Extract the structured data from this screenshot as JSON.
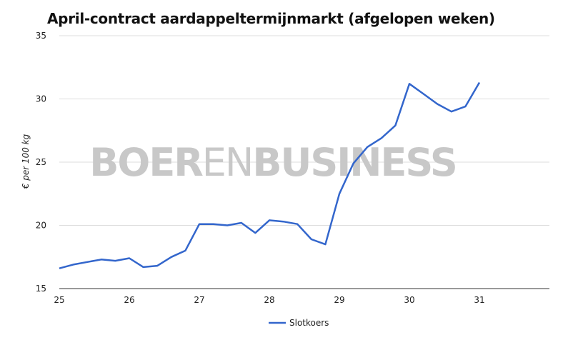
{
  "chart_data": {
    "type": "line",
    "title": "April-contract aardappeltermijnmarkt (afgelopen weken)",
    "ylabel": "€ per 100 kg",
    "xlabel": "",
    "xlim": [
      25,
      32
    ],
    "ylim": [
      15,
      35
    ],
    "x_ticks": [
      "25",
      "26",
      "27",
      "28",
      "29",
      "30",
      "31"
    ],
    "y_ticks": [
      "15",
      "20",
      "25",
      "30",
      "35"
    ],
    "grid": true,
    "legend_position": "bottom",
    "series": [
      {
        "name": "Slotkoers",
        "color": "#3366cc",
        "x": [
          25.0,
          25.2,
          25.4,
          25.6,
          25.8,
          26.0,
          26.2,
          26.4,
          26.6,
          26.8,
          27.0,
          27.2,
          27.4,
          27.6,
          27.8,
          28.0,
          28.2,
          28.4,
          28.6,
          28.8,
          29.0,
          29.2,
          29.4,
          29.6,
          29.8,
          30.0,
          30.2,
          30.4,
          30.6,
          30.8,
          31.0
        ],
        "y": [
          16.6,
          16.9,
          17.1,
          17.3,
          17.2,
          17.4,
          16.7,
          16.8,
          17.5,
          18.0,
          20.1,
          20.1,
          20.0,
          20.2,
          19.4,
          20.4,
          20.3,
          20.1,
          18.9,
          18.5,
          22.5,
          24.9,
          26.2,
          26.9,
          27.9,
          31.2,
          30.4,
          29.6,
          29.0,
          29.4,
          31.3
        ]
      }
    ]
  },
  "watermark": {
    "part1": "BOER",
    "part2": "EN",
    "part3": "BUSINESS",
    "color": "#c8c8c8"
  }
}
